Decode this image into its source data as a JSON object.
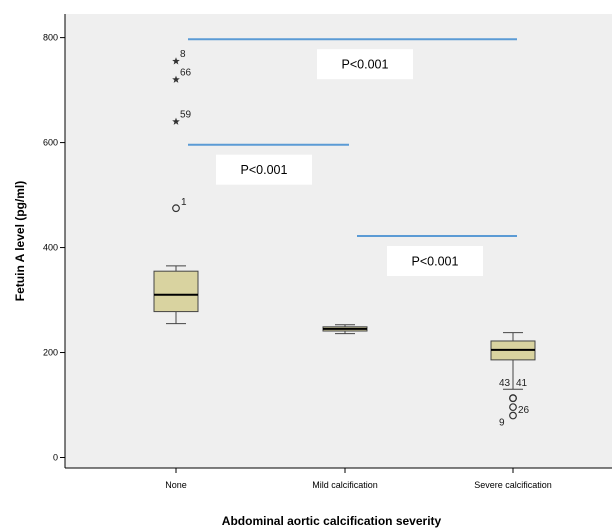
{
  "chart_data": {
    "type": "box",
    "xlabel": "Abdominal aortic calcification severity",
    "ylabel": "Fetuin A level (pg/ml)",
    "ylim": [
      -20,
      845
    ],
    "yticks": [
      0,
      200,
      400,
      600,
      800
    ],
    "grid": false,
    "colors": {
      "plot_bg": "#efefef",
      "box_fill": "#d9d3a0",
      "box_stroke": "#444444",
      "bracket": "#5b9bd5"
    },
    "groups": [
      {
        "category": "None",
        "whisker_low": 255,
        "q1": 278,
        "median": 310,
        "q3": 355,
        "whisker_high": 365,
        "outliers": [
          {
            "label": "1",
            "value": 475,
            "marker": "circle"
          }
        ],
        "extremes": [
          {
            "label": "8",
            "value": 755,
            "marker": "star"
          },
          {
            "label": "66",
            "value": 720,
            "marker": "star"
          },
          {
            "label": "59",
            "value": 640,
            "marker": "star"
          }
        ]
      },
      {
        "category": "Mild calcification",
        "whisker_low": 236,
        "q1": 241,
        "median": 245,
        "q3": 249,
        "whisker_high": 253,
        "outliers": [],
        "extremes": []
      },
      {
        "category": "Severe calcification",
        "whisker_low": 130,
        "q1": 186,
        "median": 205,
        "q3": 222,
        "whisker_high": 238,
        "outliers": [
          {
            "label": "43",
            "value": 113,
            "marker": "circle"
          },
          {
            "label": "41",
            "value": 113,
            "marker": "circle"
          },
          {
            "label": "26",
            "value": 96,
            "marker": "circle"
          },
          {
            "label": "9",
            "value": 80,
            "marker": "circle"
          }
        ],
        "extremes": []
      }
    ],
    "comparisons": [
      {
        "from": "None",
        "to": "Severe calcification",
        "y": 797,
        "label": "P<0.001"
      },
      {
        "from": "None",
        "to": "Mild calcification",
        "y": 596,
        "label": "P<0.001"
      },
      {
        "from": "Mild calcification",
        "to": "Severe calcification",
        "y": 422,
        "label": "P<0.001"
      }
    ]
  }
}
